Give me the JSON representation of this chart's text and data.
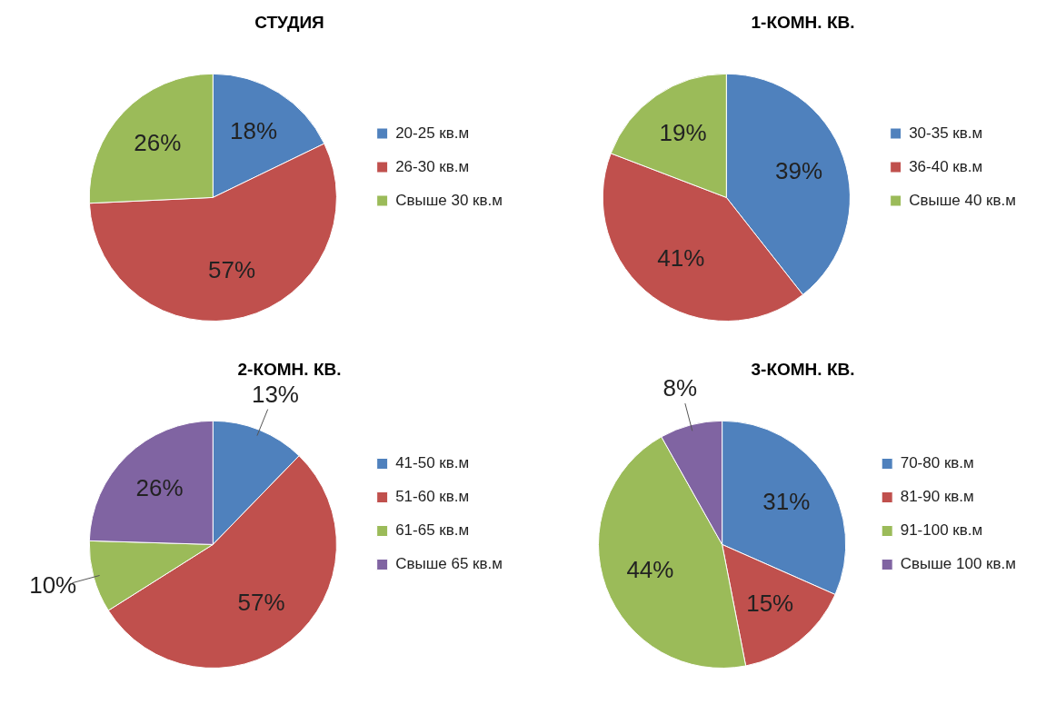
{
  "chart_data": [
    {
      "type": "pie",
      "title": "СТУДИЯ",
      "categories": [
        "20-25 кв.м",
        "26-30 кв.м",
        "Свыше 30 кв.м"
      ],
      "values": [
        18,
        57,
        26
      ],
      "colors": [
        "#4f81bd",
        "#c0504d",
        "#9bbb59"
      ],
      "value_labels": [
        "18%",
        "57%",
        "26%"
      ],
      "legend": "right"
    },
    {
      "type": "pie",
      "title": "1-КОМН. КВ.",
      "categories": [
        "30-35 кв.м",
        "36-40 кв.м",
        "Свыше 40 кв.м"
      ],
      "values": [
        39,
        41,
        19
      ],
      "colors": [
        "#4f81bd",
        "#c0504d",
        "#9bbb59"
      ],
      "value_labels": [
        "39%",
        "41%",
        "19%"
      ],
      "legend": "right"
    },
    {
      "type": "pie",
      "title": "2-КОМН. КВ.",
      "categories": [
        "41-50 кв.м",
        "51-60 кв.м",
        "61-65 кв.м",
        "Свыше 65 кв.м"
      ],
      "values": [
        13,
        57,
        10,
        26
      ],
      "colors": [
        "#4f81bd",
        "#c0504d",
        "#9bbb59",
        "#8064a2"
      ],
      "value_labels": [
        "13%",
        "57%",
        "10%",
        "26%"
      ],
      "legend": "right"
    },
    {
      "type": "pie",
      "title": "3-КОМН. КВ.",
      "categories": [
        "70-80 кв.м",
        "81-90 кв.м",
        "91-100 кв.м",
        "Свыше 100 кв.м"
      ],
      "values": [
        31,
        15,
        44,
        8
      ],
      "colors": [
        "#4f81bd",
        "#c0504d",
        "#9bbb59",
        "#8064a2"
      ],
      "value_labels": [
        "31%",
        "15%",
        "44%",
        "8%"
      ],
      "legend": "right"
    }
  ]
}
